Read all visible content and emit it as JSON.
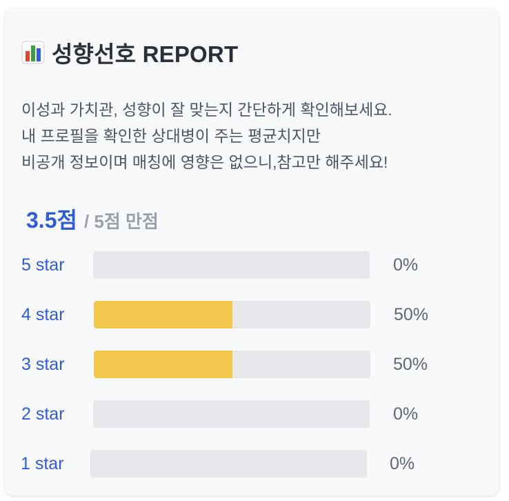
{
  "report": {
    "title": "성향선호 REPORT",
    "icon": "bar-chart-icon",
    "description_lines": [
      "이성과 가치관, 성향이 잘 맞는지 간단하게 확인해보세요.",
      "내 프로필을 확인한 상대병이 주는 평균치지만",
      "비공개 정보이며 매칭에 영향은 없으니,참고만 해주세요!"
    ],
    "score": "3.5점",
    "score_total": "/ 5점 만점"
  },
  "ratings": [
    {
      "label": "5 star",
      "percent_text": "0%",
      "percent": 0
    },
    {
      "label": "4 star",
      "percent_text": "50%",
      "percent": 50
    },
    {
      "label": "3 star",
      "percent_text": "50%",
      "percent": 50
    },
    {
      "label": "2 star",
      "percent_text": "0%",
      "percent": 0
    },
    {
      "label": "1 star",
      "percent_text": "0%",
      "percent": 0
    }
  ],
  "colors": {
    "accent": "#2f5bd6",
    "bar_fill": "#f2c94c",
    "bar_track": "#e5e7eb",
    "card_bg": "#f8f9fb"
  }
}
